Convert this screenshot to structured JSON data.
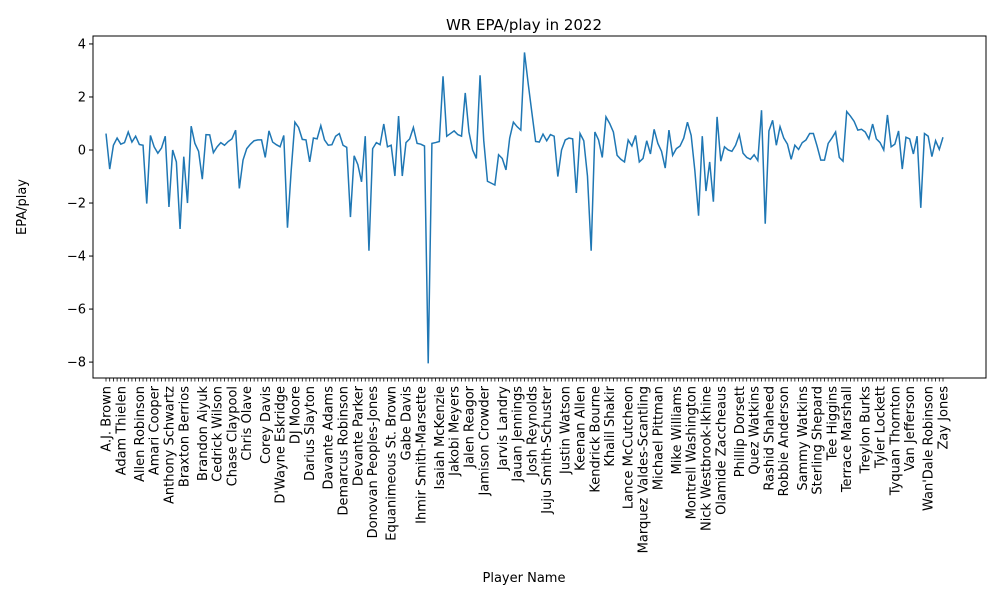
{
  "chart_data": {
    "type": "line",
    "title": "WR EPA/play in 2022",
    "xlabel": "Player Name",
    "ylabel": "EPA/play",
    "ylim": [
      -8.6,
      4.3
    ],
    "yticks": [
      -8,
      -6,
      -4,
      -2,
      0,
      2,
      4
    ],
    "grid": false,
    "legend": "none",
    "line_color": "#1f77b4",
    "visible_x_labels": [
      "A.J. Brown",
      "Adam Thielen",
      "Allen Robinson",
      "Amari Cooper",
      "Anthony Schwartz",
      "Braxton Berrios",
      "Brandon Aiyuk",
      "Cedrick Wilson",
      "Chase Claypool",
      "Chris Olave",
      "Corey Davis",
      "D'Wayne Eskridge",
      "DJ Moore",
      "Darius Slayton",
      "Davante Adams",
      "Demarcus Robinson",
      "Devante Parker",
      "Donovan Peoples-Jones",
      "Equanimeous St. Brown",
      "Gabe Davis",
      "Ihmir Smith-Marsette",
      "Isaiah McKenzie",
      "Jakobi Meyers",
      "Jalen Reagor",
      "Jamison Crowder",
      "Jarvis Landry",
      "Jauan Jennings",
      "Josh Reynolds",
      "Juju Smith-Schuster",
      "Justin Watson",
      "Keenan Allen",
      "Kendrick Bourne",
      "Khalil Shakir",
      "Lance McCutcheon",
      "Marquez Valdes-Scantling",
      "Michael Pittman",
      "Mike Williams",
      "Montrell Washington",
      "Nick Westbrook-Ikhine",
      "Olamide Zaccheaus",
      "Phillip Dorsett",
      "Quez Watkins",
      "Rashid Shaheed",
      "Robbie Anderson",
      "Sammy Watkins",
      "Sterling Shepard",
      "Tee Higgins",
      "Terrace Marshall",
      "Treylon Burks",
      "Tyler Lockett",
      "Tyquan Thornton",
      "Van Jefferson",
      "Wan'Dale Robinson",
      "Zay Jones"
    ],
    "series": [
      {
        "values": [
          0.62,
          -0.72,
          0.18,
          0.45,
          0.22,
          0.28,
          0.68,
          0.3,
          0.52,
          0.21,
          0.18,
          -2.02,
          0.55,
          0.12,
          -0.12,
          0.08,
          0.52,
          -2.15,
          0.0,
          -0.45,
          -2.98,
          -0.25,
          -2.0,
          0.9,
          0.25,
          -0.05,
          -1.1,
          0.58,
          0.57,
          -0.1,
          0.12,
          0.28,
          0.18,
          0.32,
          0.42,
          0.75,
          -1.45,
          -0.38,
          0.05,
          0.22,
          0.35,
          0.38,
          0.38,
          -0.28,
          0.72,
          0.3,
          0.2,
          0.12,
          0.55,
          -2.93,
          -0.78,
          1.05,
          0.85,
          0.4,
          0.38,
          -0.45,
          0.45,
          0.42,
          0.92,
          0.38,
          0.18,
          0.2,
          0.52,
          0.62,
          0.18,
          0.1,
          -2.53,
          -0.22,
          -0.55,
          -1.2,
          0.52,
          -3.8,
          0.05,
          0.28,
          0.2,
          0.98,
          0.12,
          0.18,
          -0.98,
          1.28,
          -0.98,
          0.28,
          0.42,
          0.85,
          0.25,
          0.22,
          0.15,
          -8.05,
          0.25,
          0.28,
          0.32,
          2.78,
          0.52,
          0.62,
          0.72,
          0.58,
          0.52,
          2.15,
          0.68,
          0.0,
          -0.32,
          2.82,
          0.35,
          -1.18,
          -1.25,
          -1.32,
          -0.18,
          -0.32,
          -0.75,
          0.45,
          1.05,
          0.88,
          0.75,
          3.68,
          2.5,
          1.4,
          0.32,
          0.3,
          0.6,
          0.35,
          0.58,
          0.52,
          -1.0,
          0.0,
          0.38,
          0.45,
          0.42,
          -1.62,
          0.62,
          0.35,
          -0.98,
          -3.8,
          0.68,
          0.38,
          -0.28,
          1.25,
          1.0,
          0.68,
          -0.2,
          -0.35,
          -0.45,
          0.38,
          0.15,
          0.55,
          -0.45,
          -0.32,
          0.35,
          -0.15,
          0.78,
          0.25,
          -0.05,
          -0.68,
          0.75,
          -0.2,
          0.05,
          0.15,
          0.45,
          1.05,
          0.55,
          -0.78,
          -2.48,
          0.52,
          -1.55,
          -0.45,
          -1.95,
          1.25,
          -0.42,
          0.12,
          0.0,
          -0.05,
          0.18,
          0.58,
          -0.12,
          -0.28,
          -0.35,
          -0.18,
          -0.4,
          1.5,
          -2.78,
          0.72,
          1.12,
          0.18,
          0.88,
          0.45,
          0.22,
          -0.35,
          0.18,
          0.02,
          0.28,
          0.38,
          0.62,
          0.62,
          0.15,
          -0.38,
          -0.38,
          0.25,
          0.45,
          0.68,
          -0.28,
          -0.42,
          1.45,
          1.28,
          1.08,
          0.75,
          0.78,
          0.68,
          0.42,
          0.98,
          0.42,
          0.28,
          0.0,
          1.32,
          0.12,
          0.22,
          0.72,
          -0.72,
          0.48,
          0.42,
          -0.15,
          0.52,
          -2.18,
          0.62,
          0.52,
          -0.25,
          0.35,
          0.02,
          0.48
        ]
      }
    ]
  }
}
